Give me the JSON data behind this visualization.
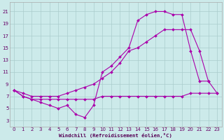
{
  "background_color": "#cceaea",
  "grid_color": "#aacccc",
  "line_color": "#aa00aa",
  "xlabel": "Windchill (Refroidissement éolien,°C)",
  "yticks": [
    3,
    5,
    7,
    9,
    11,
    13,
    15,
    17,
    19,
    21
  ],
  "xticks": [
    0,
    1,
    2,
    3,
    4,
    5,
    6,
    7,
    8,
    9,
    10,
    11,
    12,
    13,
    14,
    15,
    16,
    17,
    18,
    19,
    20,
    21,
    22,
    23
  ],
  "xlim": [
    -0.5,
    23.5
  ],
  "ylim": [
    2,
    22.5
  ],
  "lines": [
    {
      "x": [
        0,
        1,
        2,
        3,
        4,
        5,
        6,
        7,
        8,
        9,
        10,
        11,
        12,
        13,
        14,
        15,
        16,
        17,
        18,
        19,
        20,
        21,
        22,
        23
      ],
      "y": [
        8.0,
        7.0,
        6.5,
        6.5,
        6.5,
        6.5,
        6.5,
        6.5,
        6.5,
        6.5,
        7.0,
        7.0,
        7.0,
        7.0,
        7.0,
        7.0,
        7.0,
        7.0,
        7.0,
        7.0,
        7.5,
        7.5,
        7.5,
        7.5
      ]
    },
    {
      "x": [
        0,
        1,
        2,
        3,
        4,
        5,
        6,
        7,
        8,
        9,
        10,
        11,
        12,
        13,
        14,
        15,
        16,
        17,
        18,
        19,
        20,
        21,
        22
      ],
      "y": [
        8.0,
        7.0,
        6.5,
        6.0,
        5.5,
        5.0,
        5.5,
        4.0,
        3.5,
        5.5,
        11.0,
        12.0,
        13.5,
        15.0,
        19.5,
        20.5,
        21.0,
        21.0,
        20.5,
        20.5,
        14.5,
        9.5,
        9.5
      ]
    },
    {
      "x": [
        0,
        1,
        2,
        3,
        4,
        5,
        6,
        7,
        8,
        9,
        10,
        11,
        12,
        13,
        14,
        15,
        16,
        17,
        18,
        19,
        20,
        21,
        22,
        23
      ],
      "y": [
        8.0,
        7.5,
        7.0,
        7.0,
        7.0,
        7.0,
        7.5,
        8.0,
        8.5,
        9.0,
        10.0,
        11.0,
        12.5,
        14.5,
        15.0,
        16.0,
        17.0,
        18.0,
        18.0,
        18.0,
        18.0,
        14.5,
        9.5,
        7.5
      ]
    }
  ]
}
